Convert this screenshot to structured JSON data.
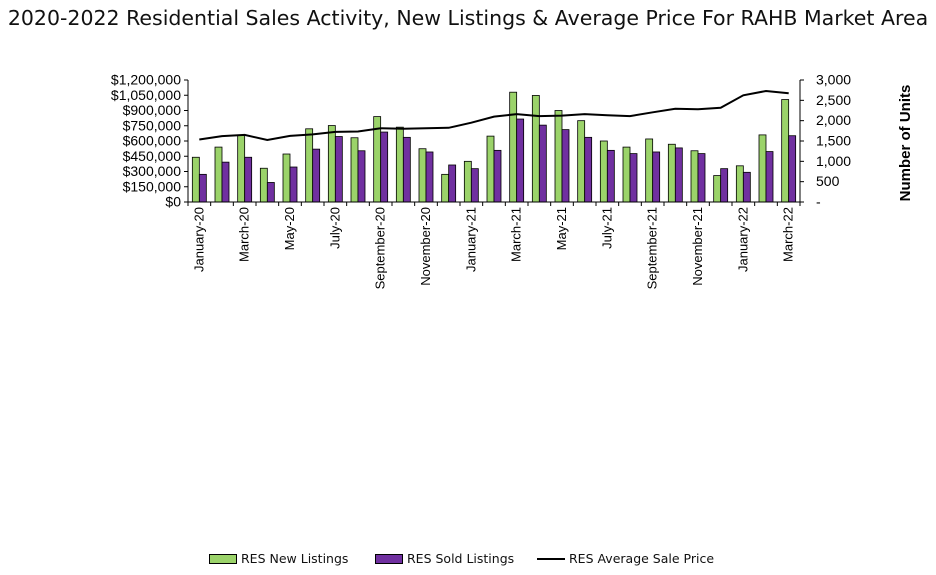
{
  "title": "2020-2022 Residential Sales Activity, New Listings & Average Price For RAHB Market Area",
  "chart_data": {
    "type": "bar",
    "categories": [
      "January-20",
      "February-20",
      "March-20",
      "April-20",
      "May-20",
      "June-20",
      "July-20",
      "August-20",
      "September-20",
      "October-20",
      "November-20",
      "December-20",
      "January-21",
      "February-21",
      "March-21",
      "April-21",
      "May-21",
      "June-21",
      "July-21",
      "August-21",
      "September-21",
      "October-21",
      "November-21",
      "December-21",
      "January-22",
      "February-22",
      "March-22"
    ],
    "x_tick_labels": [
      "January-20",
      "March-20",
      "May-20",
      "July-20",
      "September-20",
      "November-20",
      "January-21",
      "March-21",
      "May-21",
      "July-21",
      "September-21",
      "November-21",
      "January-22",
      "March-22"
    ],
    "series": [
      {
        "name": "RES New Listings",
        "type": "bar",
        "axis": "right",
        "color": "#9BD36A",
        "values": [
          1100,
          1350,
          1650,
          830,
          1180,
          1800,
          1880,
          1580,
          2100,
          1840,
          1310,
          680,
          1000,
          1620,
          2700,
          2620,
          2250,
          2000,
          1500,
          1350,
          1550,
          1420,
          1260,
          650,
          890,
          1650,
          2520
        ]
      },
      {
        "name": "RES Sold Listings",
        "type": "bar",
        "axis": "right",
        "color": "#7030A0",
        "values": [
          680,
          980,
          1100,
          480,
          860,
          1300,
          1610,
          1260,
          1720,
          1590,
          1230,
          910,
          820,
          1270,
          2040,
          1890,
          1780,
          1590,
          1270,
          1190,
          1230,
          1330,
          1190,
          820,
          730,
          1240,
          1630
        ]
      },
      {
        "name": "RES Average Sale Price",
        "type": "line",
        "axis": "left",
        "color": "#000000",
        "values": [
          615000,
          648000,
          660000,
          610000,
          650000,
          665000,
          690000,
          693000,
          725000,
          720000,
          725000,
          730000,
          780000,
          840000,
          865000,
          845000,
          850000,
          865000,
          853000,
          845000,
          882000,
          917000,
          913000,
          927000,
          1050000,
          1092000,
          1070000
        ]
      }
    ],
    "y_left": {
      "ticks": [
        "$0",
        "$150,000",
        "$300,000",
        "$450,000",
        "$600,000",
        "$750,000",
        "$900,000",
        "$1,050,000",
        "$1,200,000"
      ],
      "range": [
        0,
        1200000
      ]
    },
    "y_right": {
      "ticks": [
        "-",
        "500",
        "1,000",
        "1,500",
        "2,000",
        "2,500",
        "3,000"
      ],
      "range": [
        0,
        3000
      ],
      "label": "Number of Units"
    },
    "legend": {
      "placement": "bottom",
      "entries": [
        "RES New Listings",
        "RES Sold Listings",
        "RES Average Sale Price"
      ]
    },
    "grid": false
  }
}
